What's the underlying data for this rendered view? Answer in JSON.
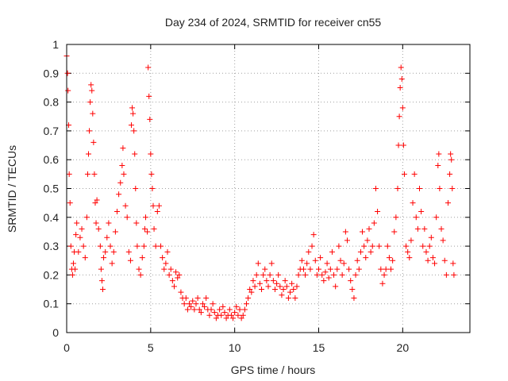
{
  "chart_data": {
    "type": "scatter",
    "title": "Day 234 of 2024, SRMTID for receiver cn55",
    "xlabel": "GPS time / hours",
    "ylabel": "SRMTID / TECUs",
    "xlim": [
      0,
      24
    ],
    "ylim": [
      0,
      1
    ],
    "xticks": [
      0,
      5,
      10,
      15,
      20
    ],
    "xtick_labels": [
      "0",
      "5",
      "10",
      "15",
      "20"
    ],
    "yticks": [
      0,
      0.1,
      0.2,
      0.3,
      0.4,
      0.5,
      0.6,
      0.7,
      0.8,
      0.9,
      1
    ],
    "ytick_labels": [
      "0",
      "0.1",
      "0.2",
      "0.3",
      "0.4",
      "0.5",
      "0.6",
      "0.7",
      "0.8",
      "0.9",
      "1"
    ],
    "grid": true,
    "marker": "+",
    "color": "#ff0000",
    "series": [
      {
        "name": "SRMTID",
        "points": [
          [
            0.0,
            0.96
          ],
          [
            0.05,
            0.9
          ],
          [
            0.08,
            0.84
          ],
          [
            0.12,
            0.72
          ],
          [
            0.15,
            0.55
          ],
          [
            0.2,
            0.45
          ],
          [
            0.25,
            0.3
          ],
          [
            0.3,
            0.22
          ],
          [
            0.35,
            0.2
          ],
          [
            0.4,
            0.24
          ],
          [
            0.45,
            0.28
          ],
          [
            0.5,
            0.22
          ],
          [
            0.55,
            0.34
          ],
          [
            0.6,
            0.38
          ],
          [
            0.7,
            0.28
          ],
          [
            0.8,
            0.33
          ],
          [
            0.9,
            0.36
          ],
          [
            1.0,
            0.3
          ],
          [
            1.1,
            0.26
          ],
          [
            1.2,
            0.4
          ],
          [
            1.25,
            0.55
          ],
          [
            1.3,
            0.62
          ],
          [
            1.35,
            0.7
          ],
          [
            1.4,
            0.8
          ],
          [
            1.45,
            0.86
          ],
          [
            1.5,
            0.84
          ],
          [
            1.55,
            0.76
          ],
          [
            1.6,
            0.66
          ],
          [
            1.65,
            0.55
          ],
          [
            1.7,
            0.45
          ],
          [
            1.75,
            0.38
          ],
          [
            1.8,
            0.46
          ],
          [
            1.9,
            0.36
          ],
          [
            2.0,
            0.3
          ],
          [
            2.05,
            0.22
          ],
          [
            2.1,
            0.18
          ],
          [
            2.15,
            0.15
          ],
          [
            2.2,
            0.26
          ],
          [
            2.3,
            0.28
          ],
          [
            2.4,
            0.33
          ],
          [
            2.5,
            0.38
          ],
          [
            2.6,
            0.3
          ],
          [
            2.7,
            0.24
          ],
          [
            2.8,
            0.28
          ],
          [
            2.9,
            0.35
          ],
          [
            3.0,
            0.42
          ],
          [
            3.1,
            0.48
          ],
          [
            3.2,
            0.52
          ],
          [
            3.3,
            0.58
          ],
          [
            3.35,
            0.64
          ],
          [
            3.4,
            0.55
          ],
          [
            3.5,
            0.44
          ],
          [
            3.6,
            0.4
          ],
          [
            3.7,
            0.28
          ],
          [
            3.8,
            0.25
          ],
          [
            3.85,
            0.72
          ],
          [
            3.9,
            0.78
          ],
          [
            3.95,
            0.76
          ],
          [
            4.0,
            0.7
          ],
          [
            4.05,
            0.62
          ],
          [
            4.1,
            0.5
          ],
          [
            4.15,
            0.38
          ],
          [
            4.2,
            0.3
          ],
          [
            4.3,
            0.22
          ],
          [
            4.4,
            0.2
          ],
          [
            4.5,
            0.26
          ],
          [
            4.6,
            0.3
          ],
          [
            4.65,
            0.36
          ],
          [
            4.7,
            0.4
          ],
          [
            4.8,
            0.35
          ],
          [
            4.85,
            0.92
          ],
          [
            4.9,
            0.82
          ],
          [
            4.95,
            0.74
          ],
          [
            5.0,
            0.62
          ],
          [
            5.05,
            0.55
          ],
          [
            5.1,
            0.5
          ],
          [
            5.15,
            0.44
          ],
          [
            5.2,
            0.36
          ],
          [
            5.3,
            0.3
          ],
          [
            5.4,
            0.42
          ],
          [
            5.5,
            0.44
          ],
          [
            5.6,
            0.3
          ],
          [
            5.7,
            0.26
          ],
          [
            5.8,
            0.22
          ],
          [
            5.9,
            0.24
          ],
          [
            6.0,
            0.28
          ],
          [
            6.1,
            0.2
          ],
          [
            6.2,
            0.22
          ],
          [
            6.3,
            0.18
          ],
          [
            6.4,
            0.16
          ],
          [
            6.5,
            0.21
          ],
          [
            6.6,
            0.19
          ],
          [
            6.7,
            0.2
          ],
          [
            6.8,
            0.14
          ],
          [
            6.9,
            0.12
          ],
          [
            7.0,
            0.1
          ],
          [
            7.1,
            0.12
          ],
          [
            7.2,
            0.08
          ],
          [
            7.3,
            0.1
          ],
          [
            7.4,
            0.09
          ],
          [
            7.5,
            0.11
          ],
          [
            7.6,
            0.08
          ],
          [
            7.7,
            0.1
          ],
          [
            7.8,
            0.12
          ],
          [
            7.9,
            0.08
          ],
          [
            8.0,
            0.07
          ],
          [
            8.1,
            0.1
          ],
          [
            8.2,
            0.09
          ],
          [
            8.3,
            0.12
          ],
          [
            8.4,
            0.08
          ],
          [
            8.5,
            0.06
          ],
          [
            8.6,
            0.08
          ],
          [
            8.7,
            0.1
          ],
          [
            8.8,
            0.07
          ],
          [
            8.9,
            0.05
          ],
          [
            9.0,
            0.06
          ],
          [
            9.1,
            0.08
          ],
          [
            9.2,
            0.06
          ],
          [
            9.3,
            0.09
          ],
          [
            9.4,
            0.07
          ],
          [
            9.5,
            0.05
          ],
          [
            9.6,
            0.06
          ],
          [
            9.7,
            0.08
          ],
          [
            9.8,
            0.06
          ],
          [
            9.9,
            0.05
          ],
          [
            10.0,
            0.07
          ],
          [
            10.1,
            0.09
          ],
          [
            10.2,
            0.06
          ],
          [
            10.3,
            0.08
          ],
          [
            10.4,
            0.05
          ],
          [
            10.5,
            0.06
          ],
          [
            10.6,
            0.08
          ],
          [
            10.7,
            0.1
          ],
          [
            10.8,
            0.12
          ],
          [
            10.9,
            0.15
          ],
          [
            11.0,
            0.14
          ],
          [
            11.1,
            0.18
          ],
          [
            11.2,
            0.16
          ],
          [
            11.3,
            0.2
          ],
          [
            11.4,
            0.24
          ],
          [
            11.5,
            0.17
          ],
          [
            11.6,
            0.15
          ],
          [
            11.7,
            0.2
          ],
          [
            11.8,
            0.22
          ],
          [
            11.9,
            0.18
          ],
          [
            12.0,
            0.16
          ],
          [
            12.1,
            0.2
          ],
          [
            12.2,
            0.24
          ],
          [
            12.3,
            0.18
          ],
          [
            12.4,
            0.15
          ],
          [
            12.5,
            0.17
          ],
          [
            12.6,
            0.2
          ],
          [
            12.7,
            0.16
          ],
          [
            12.8,
            0.13
          ],
          [
            12.9,
            0.15
          ],
          [
            13.0,
            0.18
          ],
          [
            13.1,
            0.16
          ],
          [
            13.2,
            0.12
          ],
          [
            13.3,
            0.14
          ],
          [
            13.4,
            0.17
          ],
          [
            13.5,
            0.15
          ],
          [
            13.6,
            0.12
          ],
          [
            13.7,
            0.16
          ],
          [
            13.8,
            0.2
          ],
          [
            13.9,
            0.22
          ],
          [
            14.0,
            0.25
          ],
          [
            14.1,
            0.22
          ],
          [
            14.2,
            0.2
          ],
          [
            14.3,
            0.24
          ],
          [
            14.4,
            0.28
          ],
          [
            14.5,
            0.22
          ],
          [
            14.6,
            0.3
          ],
          [
            14.7,
            0.34
          ],
          [
            14.8,
            0.25
          ],
          [
            14.9,
            0.2
          ],
          [
            15.0,
            0.22
          ],
          [
            15.1,
            0.26
          ],
          [
            15.2,
            0.2
          ],
          [
            15.3,
            0.18
          ],
          [
            15.4,
            0.21
          ],
          [
            15.5,
            0.24
          ],
          [
            15.6,
            0.19
          ],
          [
            15.7,
            0.22
          ],
          [
            15.8,
            0.28
          ],
          [
            15.9,
            0.2
          ],
          [
            16.0,
            0.16
          ],
          [
            16.1,
            0.22
          ],
          [
            16.2,
            0.3
          ],
          [
            16.3,
            0.25
          ],
          [
            16.4,
            0.2
          ],
          [
            16.5,
            0.24
          ],
          [
            16.6,
            0.35
          ],
          [
            16.7,
            0.32
          ],
          [
            16.8,
            0.22
          ],
          [
            16.9,
            0.18
          ],
          [
            17.0,
            0.15
          ],
          [
            17.1,
            0.12
          ],
          [
            17.2,
            0.2
          ],
          [
            17.3,
            0.25
          ],
          [
            17.4,
            0.22
          ],
          [
            17.5,
            0.28
          ],
          [
            17.6,
            0.35
          ],
          [
            17.7,
            0.3
          ],
          [
            17.8,
            0.26
          ],
          [
            17.9,
            0.32
          ],
          [
            18.0,
            0.36
          ],
          [
            18.1,
            0.28
          ],
          [
            18.2,
            0.3
          ],
          [
            18.3,
            0.38
          ],
          [
            18.4,
            0.5
          ],
          [
            18.5,
            0.42
          ],
          [
            18.6,
            0.3
          ],
          [
            18.7,
            0.22
          ],
          [
            18.8,
            0.17
          ],
          [
            18.9,
            0.2
          ],
          [
            19.0,
            0.22
          ],
          [
            19.1,
            0.3
          ],
          [
            19.2,
            0.26
          ],
          [
            19.3,
            0.22
          ],
          [
            19.4,
            0.25
          ],
          [
            19.5,
            0.35
          ],
          [
            19.6,
            0.4
          ],
          [
            19.7,
            0.5
          ],
          [
            19.75,
            0.65
          ],
          [
            19.8,
            0.75
          ],
          [
            19.85,
            0.85
          ],
          [
            19.9,
            0.92
          ],
          [
            19.95,
            0.88
          ],
          [
            20.0,
            0.78
          ],
          [
            20.05,
            0.65
          ],
          [
            20.1,
            0.55
          ],
          [
            20.2,
            0.3
          ],
          [
            20.3,
            0.28
          ],
          [
            20.4,
            0.26
          ],
          [
            20.5,
            0.32
          ],
          [
            20.6,
            0.45
          ],
          [
            20.7,
            0.55
          ],
          [
            20.8,
            0.4
          ],
          [
            20.9,
            0.36
          ],
          [
            21.0,
            0.5
          ],
          [
            21.1,
            0.42
          ],
          [
            21.2,
            0.3
          ],
          [
            21.3,
            0.36
          ],
          [
            21.4,
            0.28
          ],
          [
            21.5,
            0.25
          ],
          [
            21.6,
            0.3
          ],
          [
            21.7,
            0.33
          ],
          [
            21.8,
            0.26
          ],
          [
            21.9,
            0.24
          ],
          [
            22.0,
            0.4
          ],
          [
            22.1,
            0.58
          ],
          [
            22.15,
            0.62
          ],
          [
            22.2,
            0.5
          ],
          [
            22.3,
            0.36
          ],
          [
            22.4,
            0.32
          ],
          [
            22.5,
            0.25
          ],
          [
            22.6,
            0.2
          ],
          [
            22.7,
            0.45
          ],
          [
            22.8,
            0.55
          ],
          [
            22.85,
            0.62
          ],
          [
            22.9,
            0.6
          ],
          [
            22.95,
            0.5
          ],
          [
            23.0,
            0.24
          ],
          [
            23.05,
            0.2
          ]
        ]
      }
    ]
  }
}
